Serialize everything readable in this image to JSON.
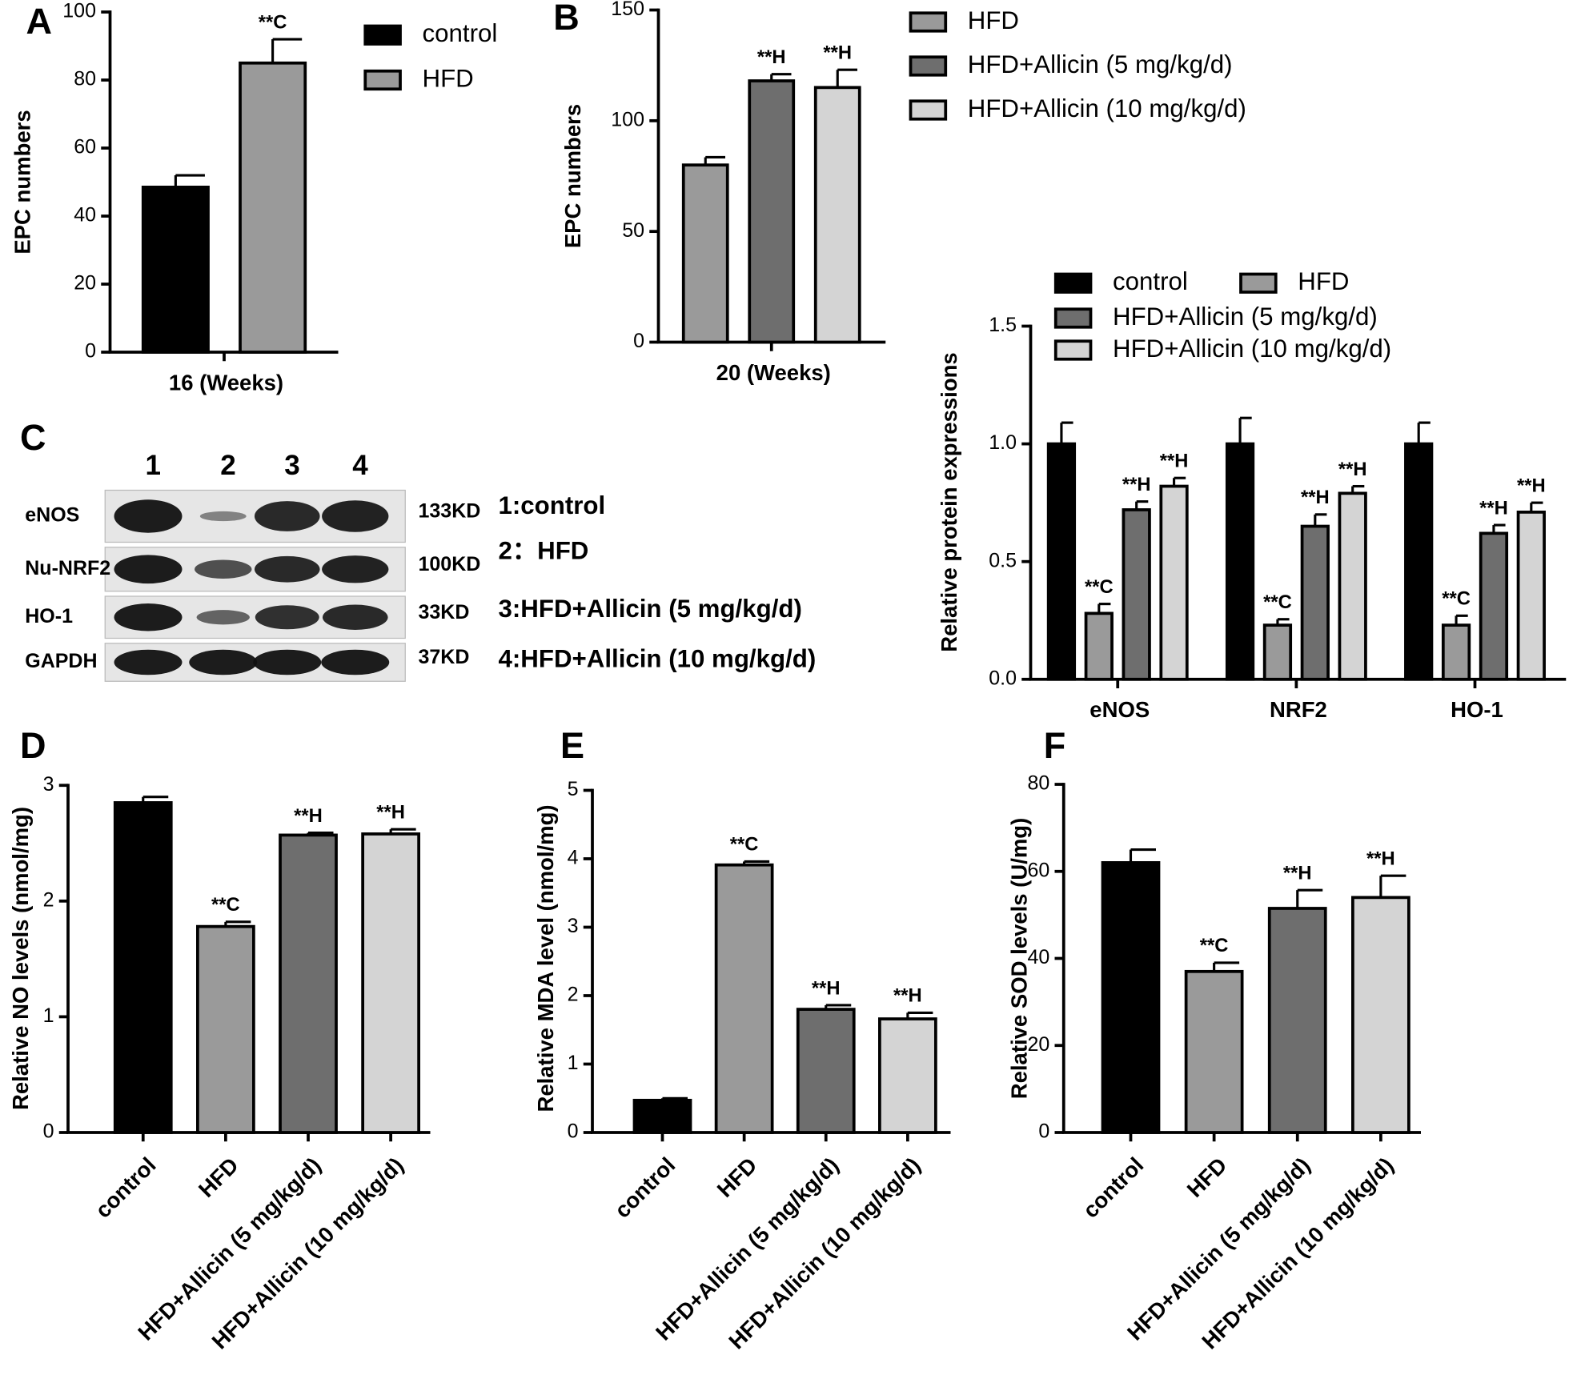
{
  "blot": {
    "panel_label": "C",
    "lanes": [
      "1",
      "2",
      "3",
      "4"
    ],
    "proteins": [
      "eNOS",
      "Nu-NRF2",
      "HO-1",
      "GAPDH"
    ],
    "sizes": [
      "133KD",
      "100KD",
      "33KD",
      "37KD"
    ],
    "lane_key": [
      "1:control",
      "2：HFD",
      "3:HFD+Allicin (5 mg/kg/d)",
      "4:HFD+Allicin (10 mg/kg/d)"
    ]
  },
  "chart_data": [
    {
      "panel_label": "A",
      "type": "bar",
      "y_label": "EPC numbers",
      "categories": [
        "16 (Weeks)"
      ],
      "series": [
        {
          "name": "control",
          "color": "#000000",
          "values": [
            48.5
          ],
          "errors": [
            3.5
          ],
          "annotations": [
            null
          ]
        },
        {
          "name": "HFD",
          "color": "#9a9a9a",
          "values": [
            85
          ],
          "errors": [
            7
          ],
          "annotations": [
            "**C"
          ]
        }
      ],
      "ylim": [
        0,
        100
      ],
      "yticks": [
        0,
        20,
        40,
        60,
        80,
        100
      ]
    },
    {
      "panel_label": "B",
      "type": "bar",
      "y_label": "EPC numbers",
      "categories": [
        "20 (Weeks)"
      ],
      "series": [
        {
          "name": "HFD",
          "color": "#9a9a9a",
          "values": [
            80
          ],
          "errors": [
            3.5
          ],
          "annotations": [
            null
          ]
        },
        {
          "name": "HFD+Allicin (5 mg/kg/d)",
          "color": "#6e6e6e",
          "values": [
            118
          ],
          "errors": [
            3
          ],
          "annotations": [
            "**H"
          ]
        },
        {
          "name": "HFD+Allicin (10 mg/kg/d)",
          "color": "#d4d4d4",
          "values": [
            115
          ],
          "errors": [
            8
          ],
          "annotations": [
            "**H"
          ]
        }
      ],
      "ylim": [
        0,
        150
      ],
      "yticks": [
        0,
        50,
        100,
        150
      ]
    },
    {
      "type": "bar",
      "y_label": "Relative protein expressions",
      "categories": [
        "eNOS",
        "NRF2",
        "HO-1"
      ],
      "series": [
        {
          "name": "control",
          "color": "#000000",
          "values": [
            1.0,
            1.0,
            1.0
          ],
          "errors": [
            0.09,
            0.11,
            0.09
          ],
          "annotations": [
            null,
            null,
            null
          ]
        },
        {
          "name": "HFD",
          "color": "#9a9a9a",
          "values": [
            0.28,
            0.23,
            0.23
          ],
          "errors": [
            0.04,
            0.025,
            0.04
          ],
          "annotations": [
            "**C",
            "**C",
            "**C"
          ]
        },
        {
          "name": "HFD+Allicin (5 mg/kg/d)",
          "color": "#6e6e6e",
          "values": [
            0.72,
            0.65,
            0.62
          ],
          "errors": [
            0.035,
            0.05,
            0.035
          ],
          "annotations": [
            "**H",
            "**H",
            "**H"
          ]
        },
        {
          "name": "HFD+Allicin (10 mg/kg/d)",
          "color": "#d4d4d4",
          "values": [
            0.82,
            0.79,
            0.71
          ],
          "errors": [
            0.035,
            0.03,
            0.04
          ],
          "annotations": [
            "**H",
            "**H",
            "**H"
          ]
        }
      ],
      "ylim": [
        0,
        1.5
      ],
      "yticks": [
        {
          "value": 0,
          "label": "0.0"
        },
        0.5,
        {
          "value": 1,
          "label": "1.0"
        },
        1.5
      ]
    },
    {
      "panel_label": "D",
      "type": "bar",
      "y_label": "Relative NO levels (nmol/mg)",
      "categories": [
        "control",
        "HFD",
        "HFD+Allicin (5 mg/kg/d)",
        "HFD+Allicin (10 mg/kg/d)"
      ],
      "values": [
        2.85,
        1.78,
        2.57,
        2.58
      ],
      "errors": [
        0.05,
        0.04,
        0.02,
        0.04
      ],
      "annotations": [
        null,
        "**C",
        "**H",
        "**H"
      ],
      "colors": [
        "#000000",
        "#9a9a9a",
        "#6e6e6e",
        "#d4d4d4"
      ],
      "ylim": [
        0,
        3
      ],
      "yticks": [
        0,
        1,
        2,
        3
      ]
    },
    {
      "panel_label": "E",
      "type": "bar",
      "y_label": "Relative MDA level (nmol/mg)",
      "categories": [
        "control",
        "HFD",
        "HFD+Allicin (5 mg/kg/d)",
        "HFD+Allicin (10 mg/kg/d)"
      ],
      "values": [
        0.47,
        3.91,
        1.8,
        1.66
      ],
      "errors": [
        0.03,
        0.05,
        0.06,
        0.09
      ],
      "annotations": [
        null,
        "**C",
        "**H",
        "**H"
      ],
      "colors": [
        "#000000",
        "#9a9a9a",
        "#6e6e6e",
        "#d4d4d4"
      ],
      "ylim": [
        0,
        5
      ],
      "yticks": [
        0,
        1,
        2,
        3,
        4,
        5
      ]
    },
    {
      "panel_label": "F",
      "type": "bar",
      "y_label": "Relative SOD levels (U/mg)",
      "categories": [
        "control",
        "HFD",
        "HFD+Allicin (5 mg/kg/d)",
        "HFD+Allicin (10 mg/kg/d)"
      ],
      "values": [
        62,
        37,
        51.5,
        54
      ],
      "errors": [
        3,
        2,
        4.2,
        5
      ],
      "annotations": [
        null,
        "**C",
        "**H",
        "**H"
      ],
      "colors": [
        "#000000",
        "#9a9a9a",
        "#6e6e6e",
        "#d4d4d4"
      ],
      "ylim": [
        0,
        80
      ],
      "yticks": [
        0,
        20,
        40,
        60,
        80
      ]
    }
  ]
}
